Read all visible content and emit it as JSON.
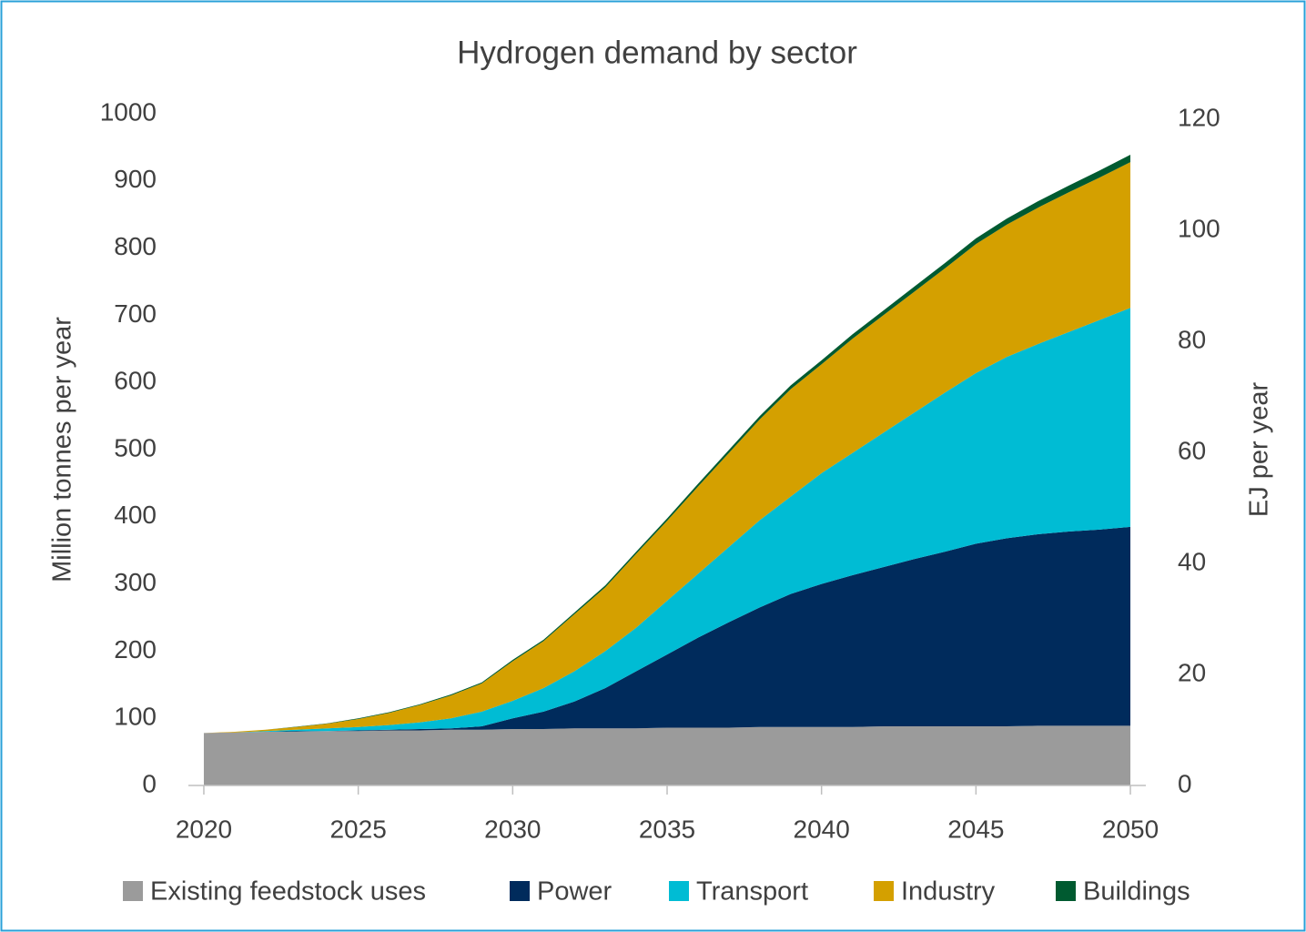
{
  "chart_data": {
    "type": "stacked_area",
    "title": "Hydrogen demand by sector",
    "y_label": "Million tonnes per year",
    "y2_label": "EJ per year",
    "x": [
      2020,
      2021,
      2022,
      2023,
      2024,
      2025,
      2026,
      2027,
      2028,
      2029,
      2030,
      2031,
      2032,
      2033,
      2034,
      2035,
      2036,
      2037,
      2038,
      2039,
      2040,
      2041,
      2042,
      2043,
      2044,
      2045,
      2046,
      2047,
      2048,
      2049,
      2050
    ],
    "xlim": [
      2019.5,
      2050.5
    ],
    "xticks": [
      2020,
      2025,
      2030,
      2035,
      2040,
      2045,
      2050
    ],
    "ylim": [
      0,
      1000
    ],
    "yticks": [
      0,
      100,
      200,
      300,
      400,
      500,
      600,
      700,
      800,
      900,
      1000
    ],
    "y2lim": [
      0,
      121
    ],
    "y2ticks": [
      0,
      20,
      40,
      60,
      80,
      100,
      120
    ],
    "legend": "bottom",
    "series": [
      {
        "name": "Existing feedstock uses",
        "color": "#9b9b9b",
        "values": [
          78,
          79,
          80,
          80,
          81,
          81,
          82,
          82,
          83,
          83,
          84,
          84,
          85,
          85,
          85,
          86,
          86,
          86,
          87,
          87,
          87,
          87,
          88,
          88,
          88,
          88,
          88,
          89,
          89,
          89,
          89
        ]
      },
      {
        "name": "Power",
        "color": "#002b5c",
        "values": [
          0,
          0,
          0,
          1,
          0,
          1,
          1,
          2,
          2,
          5,
          16,
          26,
          40,
          60,
          85,
          109,
          134,
          157,
          178,
          198,
          213,
          226,
          237,
          249,
          260,
          272,
          280,
          285,
          289,
          292,
          296
        ]
      },
      {
        "name": "Transport",
        "color": "#00bcd4",
        "values": [
          0,
          0,
          1,
          2,
          4,
          5,
          7,
          10,
          15,
          22,
          26,
          35,
          45,
          55,
          65,
          80,
          95,
          112,
          130,
          145,
          165,
          182,
          200,
          218,
          237,
          254,
          270,
          283,
          297,
          312,
          326
        ]
      },
      {
        "name": "Industry",
        "color": "#d4a000",
        "values": [
          0,
          1,
          2,
          4,
          7,
          12,
          18,
          26,
          34,
          42,
          59,
          70,
          85,
          95,
          110,
          119,
          130,
          140,
          150,
          160,
          162,
          170,
          175,
          180,
          185,
          192,
          197,
          203,
          208,
          212,
          217
        ]
      },
      {
        "name": "Buildings",
        "color": "#005a30",
        "values": [
          0,
          0,
          0,
          0.5,
          0.5,
          1,
          1,
          1,
          1.5,
          1.5,
          2,
          2,
          2.5,
          3,
          3,
          3.5,
          4,
          4.5,
          5,
          5.5,
          6,
          6.5,
          7,
          7.5,
          8,
          8.5,
          9,
          9.5,
          10,
          10.5,
          11
        ]
      }
    ]
  }
}
